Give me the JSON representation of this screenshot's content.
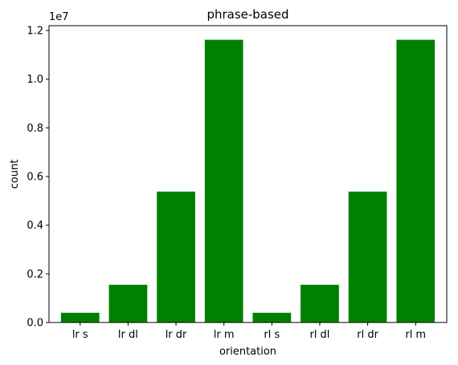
{
  "chart_data": {
    "type": "bar",
    "title": "phrase-based",
    "xlabel": "orientation",
    "ylabel": "count",
    "offset_label": "1e7",
    "categories": [
      "lr s",
      "lr dl",
      "lr dr",
      "lr m",
      "rl s",
      "rl dl",
      "rl dr",
      "rl m"
    ],
    "values": [
      400000,
      1550000,
      5380000,
      11620000,
      400000,
      1550000,
      5380000,
      11620000
    ],
    "ylim": [
      0,
      12200000
    ],
    "yticks": [
      0,
      2000000,
      4000000,
      6000000,
      8000000,
      10000000,
      12000000
    ],
    "ytick_labels": [
      "0.0",
      "0.2",
      "0.4",
      "0.6",
      "0.8",
      "1.0",
      "1.2"
    ],
    "bar_color": "#008000",
    "grid": false,
    "legend": "none"
  }
}
